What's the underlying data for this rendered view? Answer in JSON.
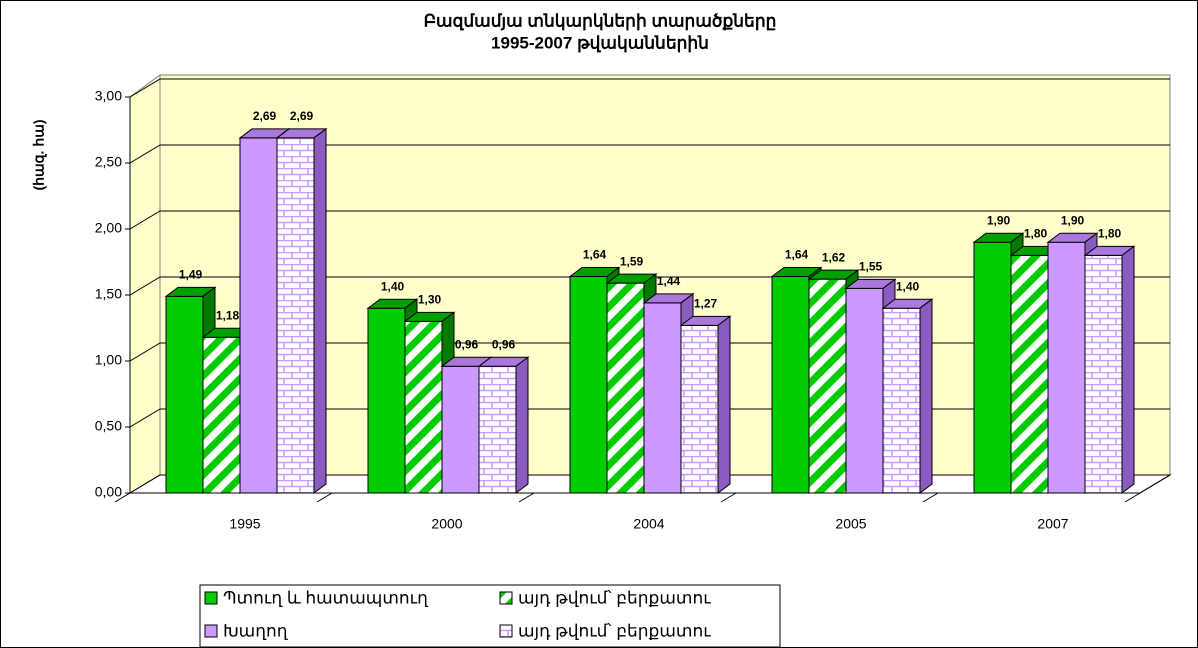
{
  "chart_data": {
    "type": "bar3d",
    "title": "Բազմամյա տնկարկների տարածքները",
    "subtitle": "1995-2007 թվականներին",
    "ylabel": "(հազ. հա)",
    "categories": [
      "1995",
      "2000",
      "2004",
      "2005",
      "2007"
    ],
    "series": [
      {
        "name": "Պտուղ և հատապտուղ",
        "color": "#00cc00",
        "fill": "solid",
        "values": [
          1.49,
          1.4,
          1.64,
          1.64,
          1.9
        ],
        "value_labels": [
          "1,49",
          "1,40",
          "1,64",
          "1,64",
          "1,90"
        ]
      },
      {
        "name": "այդ թվում՝ բերքատու",
        "color": "#00cc00",
        "fill": "hatch",
        "values": [
          1.18,
          1.3,
          1.59,
          1.62,
          1.8
        ],
        "value_labels": [
          "1,18",
          "1,30",
          "1,59",
          "1,62",
          "1,80"
        ]
      },
      {
        "name": "Խաղող",
        "color": "#cc99ff",
        "fill": "solid",
        "values": [
          2.69,
          0.96,
          1.44,
          1.55,
          1.9
        ],
        "value_labels": [
          "2,69",
          "0,96",
          "1,44",
          "1,55",
          "1,90"
        ]
      },
      {
        "name": "այդ թվում՝ բերքատու",
        "color": "#cc99ff",
        "fill": "brick",
        "values": [
          2.69,
          0.96,
          1.27,
          1.4,
          1.8
        ],
        "value_labels": [
          "2,69",
          "0,96",
          "1,27",
          "1,40",
          "1,80"
        ]
      }
    ],
    "ylim": [
      0,
      3
    ],
    "yticks": [
      {
        "value": 0,
        "label": "0,00"
      },
      {
        "value": 0.5,
        "label": "0,50"
      },
      {
        "value": 1,
        "label": "1,00"
      },
      {
        "value": 1.5,
        "label": "1,50"
      },
      {
        "value": 2,
        "label": "2,00"
      },
      {
        "value": 2.5,
        "label": "2,50"
      },
      {
        "value": 3,
        "label": "3,00"
      }
    ],
    "grid": true,
    "legend": "bottom"
  }
}
